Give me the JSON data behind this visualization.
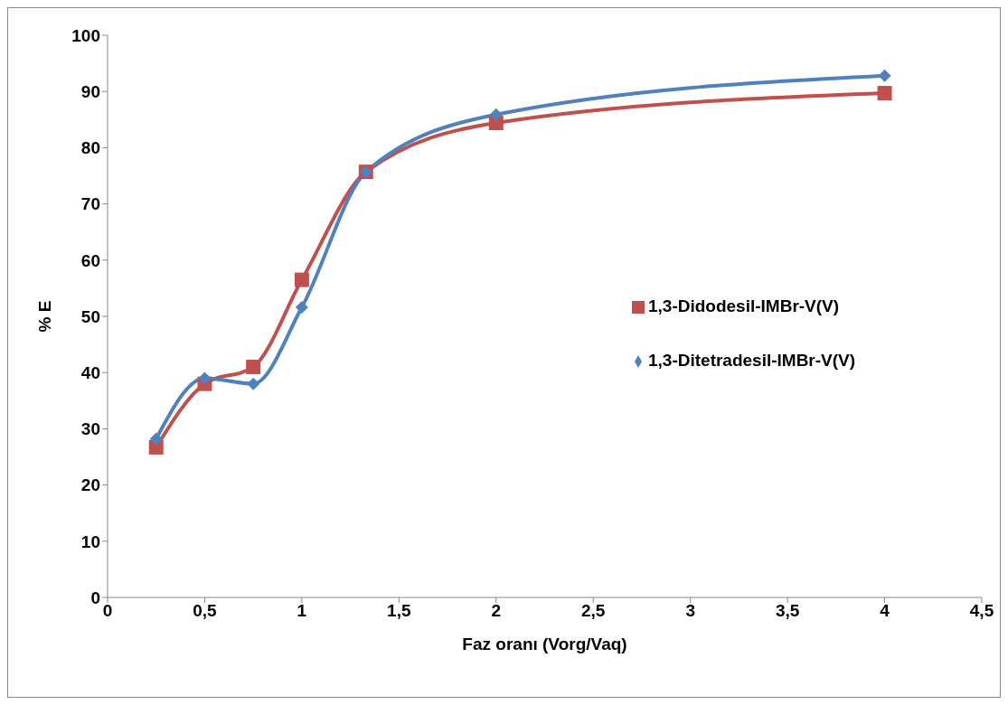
{
  "chart_data": {
    "type": "line",
    "xlabel": "Faz oranı (Vorg/Vaq)",
    "ylabel": "% E",
    "x": [
      0.25,
      0.5,
      0.75,
      1,
      1.33,
      2,
      4
    ],
    "series": [
      {
        "name": "1,3-Didodesil-IMBr-V(V)",
        "color": "#c0504d",
        "marker": "square",
        "values": [
          26.7,
          38,
          41,
          56.5,
          75.7,
          84.4,
          89.7
        ]
      },
      {
        "name": "1,3-Ditetradesil-IMBr-V(V)",
        "color": "#4f81bd",
        "marker": "diamond",
        "values": [
          28.2,
          39,
          38,
          51.6,
          75.7,
          85.9,
          92.8
        ]
      }
    ],
    "xlim": [
      0,
      4.5
    ],
    "xticks": [
      0,
      {
        "value": 0.5,
        "label": "0,5"
      },
      1,
      {
        "value": 1.5,
        "label": "1,5"
      },
      2,
      {
        "value": 2.5,
        "label": "2,5"
      },
      3,
      {
        "value": 3.5,
        "label": "3,5"
      },
      4,
      {
        "value": 4.5,
        "label": "4,5"
      }
    ],
    "ylim": [
      0,
      100
    ],
    "yticks": [
      0,
      10,
      20,
      30,
      40,
      50,
      60,
      70,
      80,
      90,
      100
    ],
    "grid": false,
    "legend": "right"
  }
}
